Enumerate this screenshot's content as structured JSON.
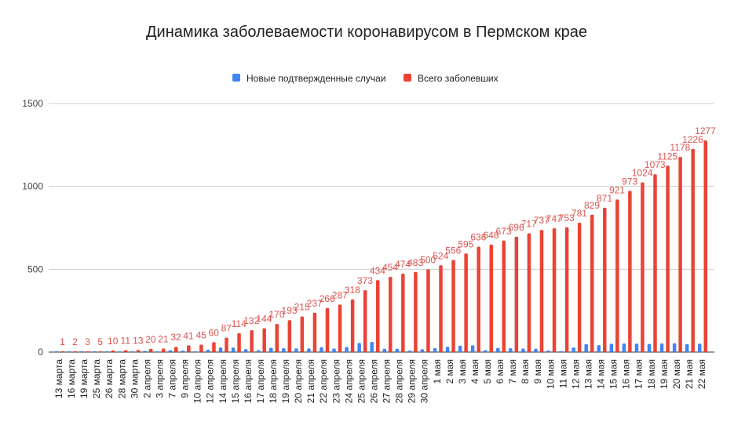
{
  "chart_data": {
    "type": "bar",
    "title": "Динамика заболеваемости коронавирусом в Пермском крае",
    "xlabel": "",
    "ylabel": "",
    "ylim": [
      0,
      1500
    ],
    "yticks": [
      0,
      500,
      1000,
      1500
    ],
    "grid": true,
    "legend_position": "top",
    "categories": [
      "13 марта",
      "16 марта",
      "19 марта",
      "25 марта",
      "26 марта",
      "28 марта",
      "30 марта",
      "2 апреля",
      "3 апреля",
      "7 апреля",
      "9 апреля",
      "10 апреля",
      "12 апреля",
      "14 апреля",
      "15 апреля",
      "16 апреля",
      "17 апреля",
      "18 апреля",
      "19 апреля",
      "20 апреля",
      "21 апреля",
      "22 апреля",
      "23 апреля",
      "24 апреля",
      "25 апреля",
      "26 апреля",
      "27 апреля",
      "28 апреля",
      "29 апреля",
      "30 апреля",
      "1 мая",
      "2 мая",
      "3 мая",
      "4 мая",
      "5 мая",
      "6 мая",
      "7 мая",
      "8 мая",
      "9 мая",
      "10 мая",
      "11 мая",
      "12 мая",
      "13 мая",
      "14 мая",
      "15 мая",
      "16 мая",
      "17 мая",
      "18 мая",
      "19 мая",
      "20 мая",
      "21 мая",
      "22 мая"
    ],
    "series": [
      {
        "name": "Новые подтвержденные случаи",
        "color": "#4285f4",
        "show_labels": false,
        "values": [
          1,
          1,
          1,
          2,
          5,
          1,
          2,
          7,
          1,
          11,
          9,
          4,
          15,
          27,
          27,
          18,
          12,
          26,
          23,
          22,
          22,
          29,
          21,
          31,
          55,
          61,
          20,
          20,
          9,
          17,
          24,
          32,
          39,
          41,
          12,
          25,
          23,
          21,
          20,
          10,
          6,
          28,
          48,
          42,
          50,
          52,
          51,
          49,
          52,
          53,
          48,
          51
        ]
      },
      {
        "name": "Всего заболевших",
        "color": "#ea4335",
        "show_labels": true,
        "values": [
          1,
          2,
          3,
          5,
          10,
          11,
          13,
          20,
          21,
          32,
          41,
          45,
          60,
          87,
          114,
          132,
          144,
          170,
          193,
          215,
          237,
          266,
          287,
          318,
          373,
          434,
          454,
          474,
          483,
          500,
          524,
          556,
          595,
          636,
          648,
          673,
          696,
          717,
          737,
          747,
          753,
          781,
          829,
          871,
          921,
          973,
          1024,
          1073,
          1125,
          1178,
          1226,
          1277
        ]
      }
    ]
  }
}
